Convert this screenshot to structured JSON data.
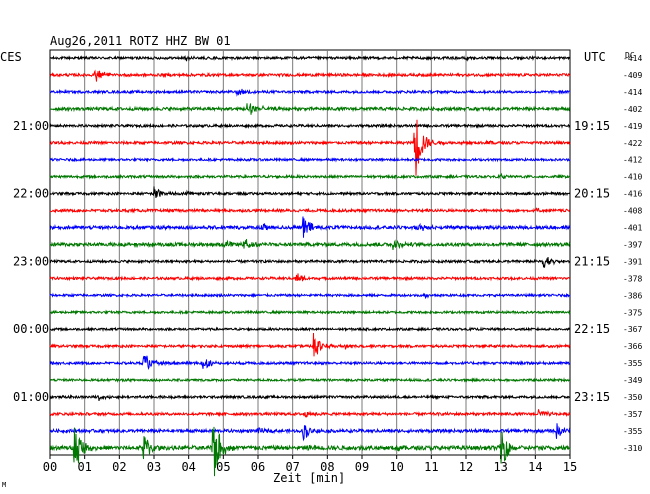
{
  "chart_data": {
    "type": "line",
    "title": "Aug26,2011   ROTZ HHZ BW 01",
    "left_tz": "CES",
    "right_tz": "UTC",
    "dc_header": "DC",
    "xlabel": "Zeit [min]",
    "xlim": [
      0,
      15
    ],
    "xticks": [
      "00",
      "01",
      "02",
      "03",
      "04",
      "05",
      "06",
      "07",
      "08",
      "09",
      "10",
      "11",
      "12",
      "13",
      "14",
      "15"
    ],
    "grid": true,
    "trace_colors": [
      "#000000",
      "#ff0000",
      "#0000ff",
      "#007700"
    ],
    "row_labels_left": [
      {
        "row": 4,
        "text": "21:00"
      },
      {
        "row": 8,
        "text": "22:00"
      },
      {
        "row": 12,
        "text": "23:00"
      },
      {
        "row": 16,
        "text": "00:00"
      },
      {
        "row": 20,
        "text": "01:00"
      }
    ],
    "row_labels_right": [
      {
        "row": 4,
        "text": "19:15"
      },
      {
        "row": 8,
        "text": "20:15"
      },
      {
        "row": 12,
        "text": "21:15"
      },
      {
        "row": 16,
        "text": "22:15"
      },
      {
        "row": 20,
        "text": "23:15"
      }
    ],
    "dc_offsets": [
      "-414",
      "-409",
      "-414",
      "-402",
      "-419",
      "-422",
      "-412",
      "-410",
      "-416",
      "-408",
      "-401",
      "-397",
      "-391",
      "-378",
      "-386",
      "-375",
      "-367",
      "-366",
      "-355",
      "-349",
      "-350",
      "-357",
      "-355",
      "-310"
    ],
    "noise_levels": [
      1.2,
      1.3,
      1.2,
      1.5,
      1.2,
      1.3,
      1.1,
      1.2,
      1.2,
      1.3,
      1.6,
      1.7,
      1.2,
      1.2,
      1.1,
      1.1,
      1.1,
      1.2,
      1.2,
      1.1,
      1.2,
      1.3,
      1.5,
      2.0
    ],
    "events": [
      {
        "row": 0,
        "t": 3.9,
        "amp": 3
      },
      {
        "row": 0,
        "t": 12.0,
        "amp": 3
      },
      {
        "row": 1,
        "t": 1.3,
        "amp": 9
      },
      {
        "row": 2,
        "t": 5.4,
        "amp": 4
      },
      {
        "row": 3,
        "t": 5.7,
        "amp": 15
      },
      {
        "row": 5,
        "t": 10.5,
        "amp": 46
      },
      {
        "row": 5,
        "t": 12.6,
        "amp": 3
      },
      {
        "row": 7,
        "t": 13.0,
        "amp": 2
      },
      {
        "row": 8,
        "t": 3.0,
        "amp": 8
      },
      {
        "row": 8,
        "t": 3.8,
        "amp": 4
      },
      {
        "row": 9,
        "t": 14.0,
        "amp": 2
      },
      {
        "row": 10,
        "t": 7.3,
        "amp": 13
      },
      {
        "row": 10,
        "t": 6.1,
        "amp": 5
      },
      {
        "row": 10,
        "t": 10.6,
        "amp": 5
      },
      {
        "row": 11,
        "t": 5.0,
        "amp": 5
      },
      {
        "row": 11,
        "t": 5.6,
        "amp": 6
      },
      {
        "row": 11,
        "t": 9.9,
        "amp": 6
      },
      {
        "row": 11,
        "t": 2.4,
        "amp": 3
      },
      {
        "row": 12,
        "t": 14.2,
        "amp": 11
      },
      {
        "row": 13,
        "t": 7.1,
        "amp": 6
      },
      {
        "row": 14,
        "t": 10.8,
        "amp": 3
      },
      {
        "row": 17,
        "t": 7.6,
        "amp": 15
      },
      {
        "row": 17,
        "t": 8.5,
        "amp": 3
      },
      {
        "row": 18,
        "t": 2.7,
        "amp": 11
      },
      {
        "row": 18,
        "t": 4.4,
        "amp": 8
      },
      {
        "row": 20,
        "t": 1.4,
        "amp": 3
      },
      {
        "row": 21,
        "t": 14.1,
        "amp": 6
      },
      {
        "row": 21,
        "t": 7.3,
        "amp": 4
      },
      {
        "row": 22,
        "t": 7.3,
        "amp": 10
      },
      {
        "row": 22,
        "t": 14.6,
        "amp": 9
      },
      {
        "row": 22,
        "t": 6.0,
        "amp": 3
      },
      {
        "row": 23,
        "t": 0.7,
        "amp": 28
      },
      {
        "row": 23,
        "t": 2.7,
        "amp": 18
      },
      {
        "row": 23,
        "t": 4.7,
        "amp": 40
      },
      {
        "row": 23,
        "t": 13.0,
        "amp": 24
      },
      {
        "row": 23,
        "t": 7.4,
        "amp": 4
      },
      {
        "row": 23,
        "t": 10.0,
        "amp": 4
      }
    ],
    "footer_mark": "M"
  }
}
